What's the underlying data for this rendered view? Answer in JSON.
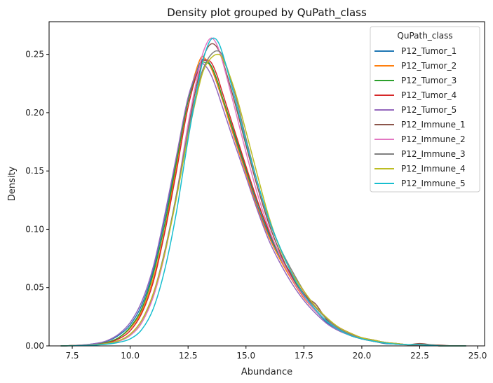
{
  "chart_data": {
    "type": "line",
    "title": "Density plot grouped by QuPath_class",
    "xlabel": "Abundance",
    "ylabel": "Density",
    "xlim": [
      6.5,
      25.3
    ],
    "ylim": [
      0,
      0.278
    ],
    "xticks": [
      7.5,
      10.0,
      12.5,
      15.0,
      17.5,
      20.0,
      22.5,
      25.0
    ],
    "xtick_labels": [
      "7.5",
      "10.0",
      "12.5",
      "15.0",
      "17.5",
      "20.0",
      "22.5",
      "25.0"
    ],
    "yticks": [
      0.0,
      0.05,
      0.1,
      0.15,
      0.2,
      0.25
    ],
    "ytick_labels": [
      "0.00",
      "0.05",
      "0.10",
      "0.15",
      "0.20",
      "0.25"
    ],
    "grid": false,
    "legend": {
      "title": "QuPath_class",
      "position": "top-right"
    },
    "x": [
      7.0,
      7.5,
      8.0,
      8.5,
      9.0,
      9.5,
      10.0,
      10.5,
      11.0,
      11.5,
      12.0,
      12.5,
      13.0,
      13.25,
      13.5,
      13.75,
      14.0,
      14.5,
      15.0,
      15.5,
      16.0,
      16.5,
      17.0,
      17.5,
      18.0,
      18.5,
      19.0,
      19.5,
      20.0,
      20.5,
      21.0,
      21.5,
      22.0,
      22.5,
      23.0,
      23.5,
      24.0,
      24.5
    ],
    "series": [
      {
        "name": "P12_Tumor_1",
        "color": "#1f77b4",
        "values": [
          0.0,
          0.0003,
          0.0008,
          0.002,
          0.004,
          0.009,
          0.018,
          0.035,
          0.065,
          0.11,
          0.16,
          0.21,
          0.242,
          0.245,
          0.24,
          0.225,
          0.21,
          0.18,
          0.15,
          0.12,
          0.095,
          0.075,
          0.058,
          0.042,
          0.03,
          0.02,
          0.014,
          0.009,
          0.006,
          0.004,
          0.002,
          0.0015,
          0.001,
          0.001,
          0.0005,
          0.0,
          0.0,
          0.0
        ]
      },
      {
        "name": "P12_Tumor_2",
        "color": "#ff7f0e",
        "values": [
          0.0,
          0.0003,
          0.0007,
          0.0015,
          0.003,
          0.007,
          0.015,
          0.03,
          0.058,
          0.1,
          0.155,
          0.21,
          0.245,
          0.246,
          0.238,
          0.225,
          0.21,
          0.178,
          0.148,
          0.118,
          0.093,
          0.073,
          0.056,
          0.041,
          0.03,
          0.021,
          0.014,
          0.01,
          0.007,
          0.005,
          0.003,
          0.0015,
          0.001,
          0.0008,
          0.0004,
          0.0,
          0.0,
          0.0
        ]
      },
      {
        "name": "P12_Tumor_3",
        "color": "#2ca02c",
        "values": [
          0.0,
          0.0002,
          0.0006,
          0.0015,
          0.003,
          0.007,
          0.016,
          0.032,
          0.062,
          0.105,
          0.158,
          0.21,
          0.24,
          0.243,
          0.24,
          0.228,
          0.212,
          0.182,
          0.152,
          0.123,
          0.097,
          0.076,
          0.059,
          0.044,
          0.031,
          0.021,
          0.014,
          0.009,
          0.006,
          0.004,
          0.0025,
          0.0015,
          0.001,
          0.001,
          0.0005,
          0.0,
          0.0,
          0.0
        ]
      },
      {
        "name": "P12_Tumor_4",
        "color": "#d62728",
        "values": [
          0.0,
          0.0002,
          0.0005,
          0.0012,
          0.0025,
          0.006,
          0.013,
          0.028,
          0.055,
          0.098,
          0.15,
          0.205,
          0.24,
          0.245,
          0.243,
          0.232,
          0.216,
          0.185,
          0.154,
          0.124,
          0.098,
          0.077,
          0.06,
          0.045,
          0.033,
          0.023,
          0.016,
          0.011,
          0.007,
          0.005,
          0.003,
          0.002,
          0.001,
          0.001,
          0.0005,
          0.0,
          0.0,
          0.0
        ]
      },
      {
        "name": "P12_Tumor_5",
        "color": "#9467bd",
        "values": [
          0.0,
          0.0003,
          0.0009,
          0.002,
          0.0045,
          0.01,
          0.02,
          0.038,
          0.068,
          0.113,
          0.163,
          0.213,
          0.24,
          0.24,
          0.232,
          0.219,
          0.204,
          0.174,
          0.145,
          0.116,
          0.09,
          0.07,
          0.053,
          0.039,
          0.028,
          0.019,
          0.013,
          0.009,
          0.006,
          0.004,
          0.0025,
          0.0015,
          0.001,
          0.0008,
          0.0004,
          0.0,
          0.0,
          0.0
        ]
      },
      {
        "name": "P12_Immune_1",
        "color": "#8c564b",
        "values": [
          0.0,
          0.0002,
          0.0004,
          0.001,
          0.002,
          0.004,
          0.009,
          0.02,
          0.043,
          0.08,
          0.13,
          0.187,
          0.235,
          0.252,
          0.259,
          0.256,
          0.244,
          0.21,
          0.172,
          0.136,
          0.104,
          0.079,
          0.058,
          0.043,
          0.036,
          0.022,
          0.014,
          0.009,
          0.006,
          0.004,
          0.0025,
          0.0015,
          0.001,
          0.002,
          0.001,
          0.0005,
          0.0,
          0.0
        ]
      },
      {
        "name": "P12_Immune_2",
        "color": "#e377c2",
        "values": [
          0.0,
          0.0002,
          0.0004,
          0.001,
          0.002,
          0.004,
          0.009,
          0.02,
          0.042,
          0.079,
          0.13,
          0.19,
          0.24,
          0.257,
          0.264,
          0.258,
          0.243,
          0.205,
          0.166,
          0.13,
          0.1,
          0.076,
          0.057,
          0.042,
          0.03,
          0.021,
          0.014,
          0.009,
          0.006,
          0.004,
          0.0025,
          0.0015,
          0.001,
          0.001,
          0.0005,
          0.0,
          0.0,
          0.0
        ]
      },
      {
        "name": "P12_Immune_3",
        "color": "#7f7f7f",
        "values": [
          0.0,
          0.0002,
          0.0005,
          0.0011,
          0.0022,
          0.0045,
          0.01,
          0.022,
          0.045,
          0.082,
          0.13,
          0.184,
          0.228,
          0.242,
          0.25,
          0.253,
          0.248,
          0.218,
          0.178,
          0.14,
          0.107,
          0.083,
          0.064,
          0.047,
          0.033,
          0.023,
          0.015,
          0.01,
          0.007,
          0.005,
          0.003,
          0.002,
          0.001,
          0.001,
          0.0005,
          0.0,
          0.0,
          0.0
        ]
      },
      {
        "name": "P12_Immune_4",
        "color": "#bcbd22",
        "values": [
          0.0,
          0.0002,
          0.0004,
          0.001,
          0.002,
          0.0045,
          0.01,
          0.022,
          0.045,
          0.08,
          0.127,
          0.18,
          0.225,
          0.24,
          0.247,
          0.25,
          0.246,
          0.22,
          0.184,
          0.146,
          0.11,
          0.082,
          0.062,
          0.047,
          0.034,
          0.024,
          0.016,
          0.011,
          0.007,
          0.005,
          0.003,
          0.002,
          0.001,
          0.001,
          0.0005,
          0.0,
          0.0,
          0.0
        ]
      },
      {
        "name": "P12_Immune_5",
        "color": "#17becf",
        "values": [
          0.0,
          0.0001,
          0.0003,
          0.0007,
          0.0015,
          0.003,
          0.006,
          0.014,
          0.032,
          0.066,
          0.115,
          0.177,
          0.232,
          0.252,
          0.263,
          0.262,
          0.25,
          0.214,
          0.175,
          0.14,
          0.108,
          0.083,
          0.061,
          0.044,
          0.031,
          0.021,
          0.014,
          0.009,
          0.006,
          0.004,
          0.0025,
          0.0015,
          0.001,
          0.001,
          0.0005,
          0.0,
          0.0,
          0.0
        ]
      }
    ]
  }
}
